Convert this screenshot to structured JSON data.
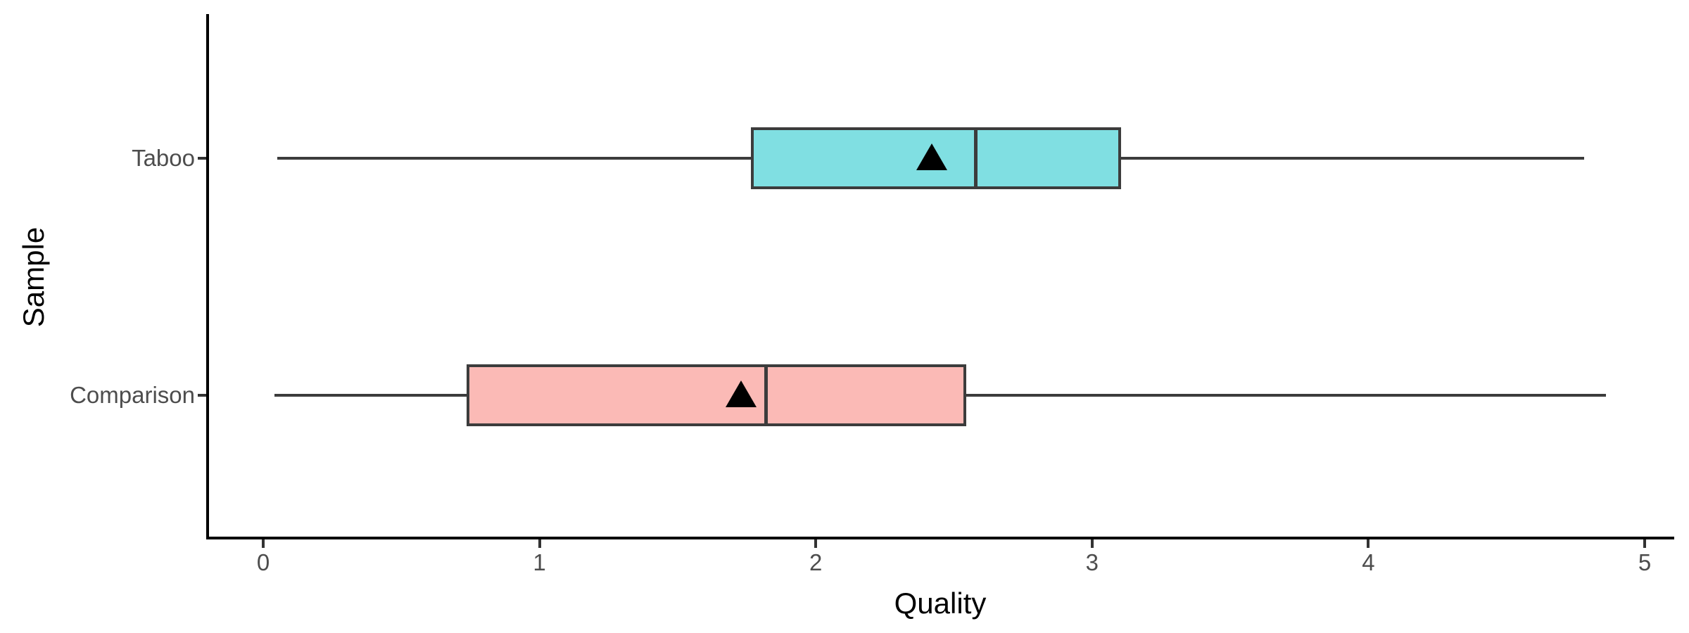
{
  "chart_data": {
    "type": "boxplot",
    "orientation": "horizontal",
    "title": "",
    "xlabel": "Quality",
    "ylabel": "Sample",
    "xlim": [
      0,
      5
    ],
    "x_ticks": [
      0,
      1,
      2,
      3,
      4,
      5
    ],
    "categories": [
      "Taboo",
      "Comparison"
    ],
    "series": [
      {
        "name": "Taboo",
        "min": 0.05,
        "q1": 1.77,
        "median": 2.58,
        "q3": 3.1,
        "max": 4.78,
        "mean": 2.42,
        "fill": "#80DFE2"
      },
      {
        "name": "Comparison",
        "min": 0.04,
        "q1": 0.74,
        "median": 1.82,
        "q3": 2.54,
        "max": 4.86,
        "mean": 1.73,
        "fill": "#FBBAB6"
      }
    ],
    "mean_marker": "filled-triangle-up",
    "grid": false,
    "legend": false,
    "colors": {
      "box_border": "#3C3C3C",
      "whisker": "#3C3C3C",
      "median": "#3C3C3C",
      "mean_marker": "#000000",
      "axis_line": "#000000",
      "axis_text": "#4D4D4D",
      "axis_title": "#000000",
      "background": "#FFFFFF"
    }
  }
}
